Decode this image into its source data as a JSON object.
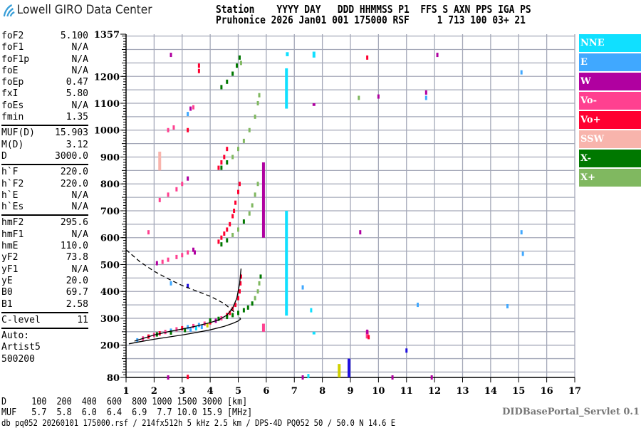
{
  "header": {
    "logo_text": "Lowell GIRO Data Center",
    "labels_line": "Station    YYYY DAY   DDD HHMMSS P1  FFS S AXN PPS IGA PS",
    "values_line": "Pruhonice 2026 Jan01 001 175000 RSF     1 713 100 03+ 21"
  },
  "params": [
    [
      [
        "foF2",
        "5.100"
      ],
      [
        "foF1",
        "N/A"
      ],
      [
        "foF1p",
        "N/A"
      ],
      [
        "foE",
        "N/A"
      ],
      [
        "foEp",
        "0.47"
      ],
      [
        "fxI",
        "5.80"
      ],
      [
        "foEs",
        "N/A"
      ],
      [
        "fmin",
        "1.35"
      ]
    ],
    [
      [
        "MUF(D)",
        "15.903"
      ],
      [
        "M(D)",
        "3.12"
      ],
      [
        "D",
        "3000.0"
      ]
    ],
    [
      [
        "h`F",
        "220.0"
      ],
      [
        "h`F2",
        "220.0"
      ],
      [
        "h`E",
        "N/A"
      ],
      [
        "h`Es",
        "N/A"
      ]
    ],
    [
      [
        "hmF2",
        "295.6"
      ],
      [
        "hmF1",
        "N/A"
      ],
      [
        "hmE",
        "110.0"
      ],
      [
        "yF2",
        "73.8"
      ],
      [
        "yF1",
        "N/A"
      ],
      [
        "yE",
        "20.0"
      ],
      [
        "B0",
        "69.7"
      ],
      [
        "B1",
        "2.58"
      ]
    ],
    [
      [
        "C-level",
        "11"
      ]
    ]
  ],
  "auto": [
    "Auto:",
    "Artist5",
    "500200"
  ],
  "bottom": {
    "d_line": "D     100  200  400  600  800 1000 1500 3000 [km]",
    "muf_line": "MUF   5.7  5.8  6.0  6.4  6.9  7.7 10.0 15.9 [MHz]",
    "footer": "db pq052 20260101 175000.rsf / 214fx512h 5 kHz 2.5 km / DPS-4D PQ052 50 / 50.0 N 14.6 E",
    "servlet": "DIDBasePortal_Servlet 0.1"
  },
  "chart_data": {
    "type": "scatter",
    "xlim": [
      1,
      17
    ],
    "ylim": [
      80,
      1357
    ],
    "x_ticks": [
      1,
      2,
      3,
      4,
      5,
      6,
      7,
      8,
      9,
      10,
      11,
      12,
      13,
      14,
      15,
      16,
      17
    ],
    "y_ticks": [
      80,
      200,
      300,
      400,
      500,
      600,
      700,
      800,
      900,
      1000,
      1100,
      1200,
      1357
    ],
    "grid": true,
    "legend_placement": "right",
    "legend": [
      {
        "name": "NNE",
        "color": "#10e0ff"
      },
      {
        "name": "E",
        "color": "#40a8ff"
      },
      {
        "name": "W",
        "color": "#b000a0"
      },
      {
        "name": "Vo-",
        "color": "#ff4090"
      },
      {
        "name": "Vo+",
        "color": "#ff0030"
      },
      {
        "name": "SSW",
        "color": "#f8b4ac"
      },
      {
        "name": "X-",
        "color": "#007800"
      },
      {
        "name": "X+",
        "color": "#80b860"
      }
    ],
    "other_colors": {
      "Y": "#d0d000",
      "B": "#2010e0"
    },
    "echoes": [
      [
        1.4,
        218,
        "E"
      ],
      [
        1.6,
        225,
        "Vo-"
      ],
      [
        1.8,
        232,
        "Vo+"
      ],
      [
        2.0,
        238,
        "Vo-"
      ],
      [
        2.2,
        244,
        "Vo+"
      ],
      [
        2.4,
        249,
        "Vo-"
      ],
      [
        2.6,
        254,
        "E"
      ],
      [
        2.8,
        259,
        "Vo-"
      ],
      [
        3.0,
        263,
        "Vo+"
      ],
      [
        3.2,
        267,
        "E"
      ],
      [
        3.4,
        271,
        "Vo-"
      ],
      [
        3.6,
        275,
        "E"
      ],
      [
        3.8,
        280,
        "Vo-"
      ],
      [
        4.0,
        285,
        "Vo+"
      ],
      [
        4.2,
        291,
        "W"
      ],
      [
        4.4,
        300,
        "Vo-"
      ],
      [
        4.6,
        312,
        "Vo+"
      ],
      [
        4.7,
        320,
        "Vo+"
      ],
      [
        4.8,
        335,
        "Vo+"
      ],
      [
        4.9,
        350,
        "Vo+"
      ],
      [
        5.0,
        375,
        "Vo+"
      ],
      [
        5.05,
        400,
        "Vo+"
      ],
      [
        5.08,
        430,
        "Vo+"
      ],
      [
        5.1,
        455,
        "Vo+"
      ],
      [
        3.3,
        258,
        "E"
      ],
      [
        3.5,
        263,
        "NNE"
      ],
      [
        3.7,
        268,
        "E"
      ],
      [
        3.9,
        274,
        "Y"
      ],
      [
        2.1,
        240,
        "X-"
      ],
      [
        2.6,
        247,
        "X-"
      ],
      [
        3.1,
        256,
        "X-"
      ],
      [
        4.0,
        292,
        "X-"
      ],
      [
        4.3,
        298,
        "X-"
      ],
      [
        4.6,
        305,
        "X-"
      ],
      [
        4.8,
        312,
        "X-"
      ],
      [
        5.0,
        320,
        "X-"
      ],
      [
        5.2,
        330,
        "X-"
      ],
      [
        5.35,
        340,
        "X-"
      ],
      [
        5.5,
        355,
        "X-"
      ],
      [
        5.6,
        375,
        "X+"
      ],
      [
        5.7,
        400,
        "X+"
      ],
      [
        5.75,
        430,
        "X+"
      ],
      [
        5.8,
        455,
        "X-"
      ],
      [
        2.1,
        505,
        "W"
      ],
      [
        2.3,
        510,
        "Vo-"
      ],
      [
        2.5,
        518,
        "Vo-"
      ],
      [
        2.8,
        528,
        "Vo-"
      ],
      [
        3.0,
        535,
        "Vo-"
      ],
      [
        3.2,
        545,
        "Vo-"
      ],
      [
        3.4,
        555,
        "W"
      ],
      [
        3.45,
        545,
        "W"
      ],
      [
        2.6,
        430,
        "E"
      ],
      [
        3.2,
        420,
        "B"
      ],
      [
        4.3,
        585,
        "Vo+"
      ],
      [
        4.4,
        600,
        "Vo+"
      ],
      [
        4.5,
        615,
        "Vo+"
      ],
      [
        4.6,
        630,
        "Vo+"
      ],
      [
        4.7,
        650,
        "Vo+"
      ],
      [
        4.8,
        680,
        "Vo+"
      ],
      [
        4.85,
        700,
        "Vo+"
      ],
      [
        4.9,
        730,
        "Vo+"
      ],
      [
        5.0,
        770,
        "Vo+"
      ],
      [
        5.05,
        800,
        "Vo+"
      ],
      [
        4.4,
        575,
        "X-"
      ],
      [
        4.6,
        590,
        "X-"
      ],
      [
        4.8,
        610,
        "X+"
      ],
      [
        5.0,
        630,
        "X+"
      ],
      [
        5.2,
        660,
        "X-"
      ],
      [
        5.4,
        690,
        "X+"
      ],
      [
        5.5,
        720,
        "X+"
      ],
      [
        5.6,
        760,
        "X+"
      ],
      [
        5.7,
        800,
        "X+"
      ],
      [
        2.2,
        740,
        "Vo-"
      ],
      [
        2.5,
        760,
        "Vo-"
      ],
      [
        2.8,
        780,
        "Vo-"
      ],
      [
        3.0,
        800,
        "Vo-"
      ],
      [
        3.2,
        820,
        "W"
      ],
      [
        1.8,
        620,
        "Vo-"
      ],
      [
        4.3,
        860,
        "Vo+"
      ],
      [
        4.4,
        880,
        "Vo+"
      ],
      [
        4.5,
        900,
        "Vo+"
      ],
      [
        4.6,
        930,
        "Vo+"
      ],
      [
        4.4,
        860,
        "X-"
      ],
      [
        4.6,
        880,
        "X-"
      ],
      [
        4.8,
        900,
        "X+"
      ],
      [
        5.0,
        930,
        "X+"
      ],
      [
        5.2,
        960,
        "X+"
      ],
      [
        5.4,
        1000,
        "X+"
      ],
      [
        5.6,
        1050,
        "X+"
      ],
      [
        5.7,
        1100,
        "X+"
      ],
      [
        5.75,
        1130,
        "X+"
      ],
      [
        2.5,
        1000,
        "Vo-"
      ],
      [
        2.7,
        1010,
        "Vo-"
      ],
      [
        3.2,
        1060,
        "E"
      ],
      [
        3.3,
        1080,
        "W"
      ],
      [
        3.4,
        1085,
        "Vo-"
      ],
      [
        3.6,
        1240,
        "Vo+"
      ],
      [
        3.6,
        1220,
        "Vo+"
      ],
      [
        2.6,
        1280,
        "W"
      ],
      [
        3.2,
        1000,
        "Vo+"
      ],
      [
        4.4,
        1160,
        "X-"
      ],
      [
        4.6,
        1180,
        "X-"
      ],
      [
        4.8,
        1210,
        "X-"
      ],
      [
        4.95,
        1240,
        "X-"
      ],
      [
        5.05,
        1270,
        "X-"
      ],
      [
        5.1,
        1250,
        "X+"
      ],
      [
        9.65,
        230,
        "Vo+"
      ],
      [
        9.6,
        250,
        "W"
      ],
      [
        7.6,
        330,
        "NNE"
      ],
      [
        7.3,
        415,
        "E"
      ],
      [
        11.4,
        350,
        "E"
      ],
      [
        11.7,
        1140,
        "W"
      ],
      [
        11.7,
        1120,
        "E"
      ],
      [
        10.0,
        1125,
        "W"
      ],
      [
        12.1,
        1280,
        "W"
      ],
      [
        15.1,
        1215,
        "E"
      ],
      [
        15.1,
        620,
        "E"
      ],
      [
        15.15,
        540,
        "E"
      ],
      [
        14.6,
        345,
        "E"
      ],
      [
        11.0,
        180,
        "B"
      ],
      [
        9.35,
        620,
        "W"
      ],
      [
        9.6,
        1270,
        "Vo+"
      ],
      [
        9.3,
        1120,
        "X+"
      ],
      [
        7.5,
        85,
        "NNE"
      ],
      [
        7.3,
        80,
        "W"
      ],
      [
        10.5,
        80,
        "W"
      ],
      [
        11.9,
        80,
        "W"
      ],
      [
        2.5,
        80,
        "W"
      ],
      [
        3.2,
        82,
        "Vo+"
      ]
    ],
    "sticks": [
      [
        6.72,
        310,
        700,
        "NNE"
      ],
      [
        6.72,
        1080,
        1230,
        "NNE"
      ],
      [
        6.75,
        1275,
        1290,
        "NNE"
      ],
      [
        7.7,
        1270,
        1292,
        "NNE"
      ],
      [
        5.9,
        600,
        880,
        "W"
      ],
      [
        5.9,
        250,
        280,
        "Vo-"
      ],
      [
        8.95,
        80,
        150,
        "B"
      ],
      [
        8.6,
        80,
        130,
        "Y"
      ],
      [
        9.6,
        225,
        255,
        "Vo-"
      ],
      [
        2.2,
        850,
        920,
        "SSW"
      ],
      [
        7.7,
        1090,
        1100,
        "W"
      ],
      [
        7.7,
        240,
        250,
        "NNE"
      ]
    ],
    "lines": [
      {
        "style": "solid",
        "points": [
          [
            1.1,
            205
          ],
          [
            1.5,
            213
          ],
          [
            2,
            222
          ],
          [
            2.5,
            230
          ],
          [
            3,
            238
          ],
          [
            3.5,
            247
          ],
          [
            4,
            257
          ],
          [
            4.5,
            270
          ],
          [
            4.8,
            281
          ],
          [
            5.0,
            290
          ],
          [
            5.08,
            297
          ],
          [
            5.05,
            303
          ]
        ]
      },
      {
        "style": "solid",
        "points": [
          [
            1.3,
            215
          ],
          [
            2,
            238
          ],
          [
            2.5,
            250
          ],
          [
            3,
            260
          ],
          [
            3.5,
            271
          ],
          [
            4,
            284
          ],
          [
            4.3,
            294
          ],
          [
            4.6,
            312
          ],
          [
            4.8,
            338
          ],
          [
            4.95,
            375
          ],
          [
            5.05,
            430
          ],
          [
            5.1,
            485
          ]
        ]
      },
      {
        "style": "dashed",
        "points": [
          [
            1.0,
            555
          ],
          [
            1.5,
            510
          ],
          [
            2,
            475
          ],
          [
            2.5,
            447
          ],
          [
            3,
            422
          ],
          [
            3.5,
            402
          ],
          [
            4,
            382
          ],
          [
            4.5,
            355
          ],
          [
            4.9,
            320
          ]
        ]
      }
    ]
  }
}
